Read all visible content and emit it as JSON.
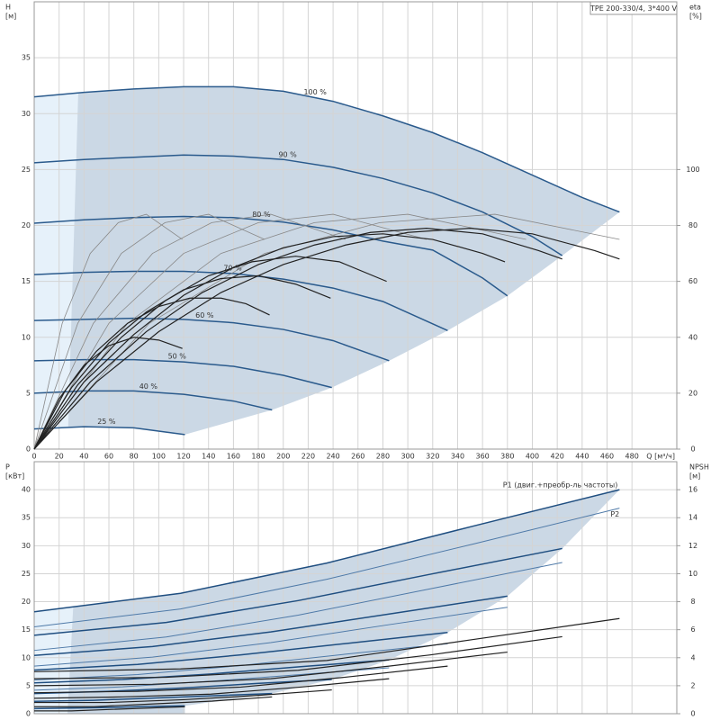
{
  "chart_data": [
    {
      "type": "line",
      "title": "TPE 200-330/4, 3*400 V",
      "xlabel": "Q [м³/ч]",
      "ylabel": "H",
      "yunit": "[м]",
      "y2label": "eta",
      "y2unit": "[%]",
      "xlim": [
        0,
        516
      ],
      "xticks": [
        0,
        20,
        40,
        60,
        80,
        100,
        120,
        140,
        160,
        180,
        200,
        220,
        240,
        260,
        280,
        300,
        320,
        340,
        360,
        380,
        400,
        420,
        440,
        460,
        480
      ],
      "ylim": [
        0,
        40
      ],
      "yticks": [
        0,
        5,
        10,
        15,
        20,
        25,
        30,
        35
      ],
      "y2lim": [
        0,
        160
      ],
      "y2ticks": [
        0,
        20,
        40,
        60,
        80,
        100
      ],
      "grid": true,
      "series": [
        {
          "name": "100 %",
          "color": "#2a5a8c",
          "x": [
            0,
            40,
            80,
            120,
            160,
            200,
            240,
            280,
            320,
            360,
            400,
            440,
            470
          ],
          "values": [
            31.5,
            31.9,
            32.2,
            32.4,
            32.4,
            32.0,
            31.1,
            29.8,
            28.3,
            26.5,
            24.5,
            22.5,
            21.2
          ]
        },
        {
          "name": "90 %",
          "color": "#2a5a8c",
          "x": [
            0,
            40,
            80,
            120,
            160,
            200,
            240,
            280,
            320,
            360,
            400,
            424
          ],
          "values": [
            25.6,
            25.9,
            26.1,
            26.3,
            26.2,
            25.9,
            25.2,
            24.2,
            22.9,
            21.2,
            19.0,
            17.3
          ]
        },
        {
          "name": "80 %",
          "color": "#2a5a8c",
          "x": [
            0,
            40,
            80,
            120,
            160,
            200,
            240,
            280,
            320,
            360,
            380
          ],
          "values": [
            20.2,
            20.5,
            20.7,
            20.8,
            20.7,
            20.3,
            19.6,
            18.6,
            17.8,
            15.3,
            13.7
          ]
        },
        {
          "name": "70 %",
          "color": "#2a5a8c",
          "x": [
            0,
            40,
            80,
            120,
            160,
            200,
            240,
            280,
            332
          ],
          "values": [
            15.6,
            15.8,
            15.9,
            15.9,
            15.7,
            15.2,
            14.4,
            13.2,
            10.6
          ]
        },
        {
          "name": "60 %",
          "color": "#2a5a8c",
          "x": [
            0,
            40,
            80,
            120,
            160,
            200,
            240,
            285
          ],
          "values": [
            11.5,
            11.6,
            11.7,
            11.6,
            11.3,
            10.7,
            9.7,
            7.9
          ]
        },
        {
          "name": "50 %",
          "color": "#2a5a8c",
          "x": [
            0,
            40,
            80,
            120,
            160,
            200,
            239
          ],
          "values": [
            7.9,
            8.0,
            8.0,
            7.8,
            7.4,
            6.6,
            5.5
          ]
        },
        {
          "name": "40 %",
          "color": "#2a5a8c",
          "x": [
            0,
            40,
            80,
            120,
            160,
            191
          ],
          "values": [
            5.0,
            5.2,
            5.2,
            4.9,
            4.3,
            3.5
          ]
        },
        {
          "name": "25 %",
          "color": "#2a5a8c",
          "x": [
            0,
            40,
            80,
            121
          ],
          "values": [
            1.8,
            2.0,
            1.9,
            1.3
          ]
        },
        {
          "axis": "y2",
          "color": "#888888",
          "x": [
            0,
            22.5,
            45,
            67.5,
            90,
            119
          ],
          "values": [
            0,
            45,
            70,
            81,
            84,
            75
          ]
        },
        {
          "axis": "y2",
          "color": "#888888",
          "x": [
            0,
            35,
            70,
            105,
            140,
            185
          ],
          "values": [
            0,
            45,
            70,
            81,
            84,
            75
          ]
        },
        {
          "axis": "y2",
          "color": "#888888",
          "x": [
            0,
            47.5,
            95,
            142.5,
            190,
            250
          ],
          "values": [
            0,
            45,
            70,
            81,
            84,
            75
          ]
        },
        {
          "axis": "y2",
          "color": "#888888",
          "x": [
            0,
            60,
            120,
            180,
            240,
            315
          ],
          "values": [
            0,
            45,
            70,
            81,
            84,
            75
          ]
        },
        {
          "axis": "y2",
          "color": "#888888",
          "x": [
            0,
            75,
            150,
            225,
            300,
            395
          ],
          "values": [
            0,
            45,
            70,
            81,
            84,
            75
          ]
        },
        {
          "axis": "y2",
          "color": "#888888",
          "x": [
            0,
            92.5,
            185,
            277.5,
            370,
            470
          ],
          "values": [
            0,
            45,
            70,
            81,
            84,
            75
          ]
        },
        {
          "axis": "y2",
          "color": "#222222",
          "x": [
            0,
            50,
            100,
            150,
            200,
            250,
            300,
            350,
            400,
            450,
            470
          ],
          "values": [
            0,
            24,
            42,
            56,
            66,
            73,
            77.5,
            79,
            77,
            71,
            68
          ]
        },
        {
          "axis": "y2",
          "color": "#222222",
          "x": [
            0,
            45,
            90,
            135,
            180,
            225,
            270,
            315,
            360,
            405,
            424
          ],
          "values": [
            0,
            24,
            42,
            56,
            66,
            73,
            77.5,
            79,
            77,
            71,
            68
          ]
        },
        {
          "axis": "y2",
          "color": "#222222",
          "x": [
            0,
            40,
            80,
            120,
            160,
            200,
            240,
            280,
            320,
            360,
            378
          ],
          "values": [
            0,
            24,
            41,
            55,
            65,
            72,
            76,
            77,
            75,
            70,
            67
          ]
        },
        {
          "axis": "y2",
          "color": "#222222",
          "x": [
            0,
            35,
            70,
            105,
            140,
            175,
            210,
            245,
            283
          ],
          "values": [
            0,
            23,
            40,
            53,
            62,
            67,
            69,
            67,
            60
          ]
        },
        {
          "axis": "y2",
          "color": "#222222",
          "x": [
            0,
            30,
            60,
            90,
            120,
            150,
            180,
            210,
            238
          ],
          "values": [
            0,
            22,
            38,
            49,
            57,
            61,
            62,
            59,
            54
          ]
        },
        {
          "axis": "y2",
          "color": "#222222",
          "x": [
            0,
            25,
            50,
            75,
            100,
            125,
            150,
            170,
            189
          ],
          "values": [
            0,
            21,
            35,
            45,
            51,
            54,
            54,
            52,
            48
          ]
        },
        {
          "axis": "y2",
          "color": "#222222",
          "x": [
            0,
            20,
            40,
            60,
            80,
            100,
            119
          ],
          "values": [
            0,
            18,
            30,
            37,
            40,
            39,
            36
          ]
        }
      ]
    },
    {
      "type": "line",
      "ylabel": "P",
      "yunit": "[кВт]",
      "y2label": "NPSH",
      "y2unit": "[м]",
      "xlim": [
        0,
        516
      ],
      "ylim": [
        0,
        45
      ],
      "yticks": [
        0,
        5,
        10,
        15,
        20,
        25,
        30,
        35,
        40
      ],
      "y2lim": [
        0,
        18
      ],
      "y2ticks": [
        0,
        2,
        4,
        6,
        8,
        10,
        12,
        14,
        16
      ],
      "grid": true,
      "series": [
        {
          "name": "P1 (двиг.+преобр-ль частоты)",
          "color": "#1f4e80",
          "x": [
            0,
            117.5,
            235,
            352.5,
            470
          ],
          "values": [
            18.2,
            21.5,
            26.9,
            33.5,
            40
          ]
        },
        {
          "name": "P2",
          "color": "#4f7aa8",
          "x": [
            0,
            117.5,
            235,
            352.5,
            470
          ],
          "values": [
            15.5,
            18.7,
            24.0,
            30.3,
            36.7
          ]
        },
        {
          "color": "#1f4e80",
          "x": [
            0,
            106,
            212,
            318,
            424
          ],
          "values": [
            14.0,
            16.3,
            20.2,
            24.9,
            29.5
          ]
        },
        {
          "color": "#4f7aa8",
          "x": [
            0,
            106,
            212,
            318,
            424
          ],
          "values": [
            11.3,
            13.7,
            17.6,
            22.3,
            27.0
          ]
        },
        {
          "color": "#1f4e80",
          "x": [
            0,
            95,
            190,
            285,
            380
          ],
          "values": [
            10.4,
            12.0,
            14.6,
            17.8,
            21.0
          ]
        },
        {
          "color": "#4f7aa8",
          "x": [
            0,
            95,
            190,
            285,
            380
          ],
          "values": [
            8.5,
            10.1,
            12.7,
            15.9,
            19.0
          ]
        },
        {
          "color": "#1f4e80",
          "x": [
            0,
            83,
            166,
            249,
            332
          ],
          "values": [
            7.8,
            8.8,
            10.5,
            12.5,
            14.5
          ]
        },
        {
          "color": "#4f7aa8",
          "x": [
            0,
            83,
            166,
            249,
            332
          ],
          "values": [
            6.0,
            7.0,
            8.6,
            10.6,
            12.5
          ]
        },
        {
          "color": "#1f4e80",
          "x": [
            0,
            71,
            142,
            214,
            285
          ],
          "values": [
            5.5,
            6.1,
            7.1,
            8.4,
            9.6
          ]
        },
        {
          "color": "#4f7aa8",
          "x": [
            0,
            71,
            142,
            214,
            285
          ],
          "values": [
            4.2,
            4.8,
            5.8,
            7.0,
            8.2
          ]
        },
        {
          "color": "#1f4e80",
          "x": [
            0,
            60,
            120,
            179,
            239
          ],
          "values": [
            3.6,
            4.0,
            4.6,
            5.4,
            6.1
          ]
        },
        {
          "color": "#1f4e80",
          "x": [
            0,
            48,
            96,
            143,
            191
          ],
          "values": [
            2.2,
            2.4,
            2.8,
            3.2,
            3.6
          ]
        },
        {
          "color": "#1f4e80",
          "x": [
            0,
            30,
            60,
            91,
            121
          ],
          "values": [
            0.9,
            1.0,
            1.1,
            1.3,
            1.4
          ]
        },
        {
          "axis": "y2",
          "color": "#222222",
          "x": [
            0,
            117.5,
            235,
            352.5,
            470
          ],
          "values": [
            3.0,
            3.2,
            3.8,
            5.3,
            6.8
          ]
        },
        {
          "axis": "y2",
          "color": "#222222",
          "x": [
            0,
            106,
            212,
            318,
            424
          ],
          "values": [
            2.5,
            2.6,
            3.1,
            4.2,
            5.5
          ]
        },
        {
          "axis": "y2",
          "color": "#222222",
          "x": [
            0,
            95,
            190,
            285,
            380
          ],
          "values": [
            2.0,
            2.1,
            2.5,
            3.4,
            4.4
          ]
        },
        {
          "axis": "y2",
          "color": "#222222",
          "x": [
            0,
            83,
            166,
            249,
            332
          ],
          "values": [
            1.5,
            1.6,
            1.9,
            2.6,
            3.4
          ]
        },
        {
          "axis": "y2",
          "color": "#222222",
          "x": [
            0,
            71,
            142,
            214,
            285
          ],
          "values": [
            1.1,
            1.2,
            1.4,
            1.9,
            2.5
          ]
        },
        {
          "axis": "y2",
          "color": "#222222",
          "x": [
            0,
            60,
            120,
            179,
            239
          ],
          "values": [
            0.8,
            0.8,
            1.0,
            1.3,
            1.7
          ]
        },
        {
          "axis": "y2",
          "color": "#222222",
          "x": [
            0,
            48,
            96,
            143,
            191
          ],
          "values": [
            0.5,
            0.5,
            0.7,
            0.9,
            1.2
          ]
        },
        {
          "axis": "y2",
          "color": "#222222",
          "x": [
            0,
            30,
            60,
            91,
            121
          ],
          "values": [
            0.2,
            0.2,
            0.3,
            0.4,
            0.5
          ]
        }
      ]
    }
  ]
}
